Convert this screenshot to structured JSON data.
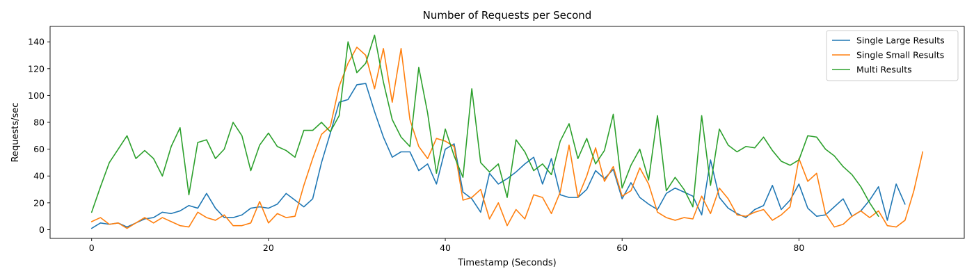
{
  "chart_data": {
    "type": "line",
    "title": "Number of Requests per Second",
    "xlabel": "Timestamp (Seconds)",
    "ylabel": "Requests/sec",
    "xlim": [
      -4.7,
      98.7
    ],
    "ylim": [
      -6.5,
      151.5
    ],
    "xticks": [
      0,
      20,
      40,
      60,
      80
    ],
    "yticks": [
      0,
      20,
      40,
      60,
      80,
      100,
      120,
      140
    ],
    "grid": false,
    "legend_position": "top-right",
    "series": [
      {
        "name": "Single Large Results",
        "color": "#1f77b4",
        "x": [
          0,
          1,
          2,
          3,
          4,
          5,
          6,
          7,
          8,
          9,
          10,
          11,
          12,
          13,
          14,
          15,
          16,
          17,
          18,
          19,
          20,
          21,
          22,
          23,
          24,
          25,
          26,
          27,
          28,
          29,
          30,
          31,
          32,
          33,
          34,
          35,
          36,
          37,
          38,
          39,
          40,
          41,
          42,
          43,
          44,
          45,
          46,
          47,
          48,
          49,
          50,
          51,
          52,
          53,
          54,
          55,
          56,
          57,
          58,
          59,
          60,
          61,
          62,
          63,
          64,
          65,
          66,
          67,
          68,
          69,
          70,
          71,
          72,
          73,
          74,
          75,
          76,
          77,
          78,
          79,
          80,
          81,
          82,
          83,
          84,
          85,
          86,
          87,
          88,
          89,
          90,
          91,
          92
        ],
        "values": [
          1,
          5,
          4,
          5,
          2,
          5,
          8,
          9,
          13,
          12,
          14,
          18,
          16,
          27,
          16,
          9,
          9,
          11,
          16,
          17,
          16,
          19,
          27,
          22,
          17,
          23,
          50,
          72,
          95,
          97,
          108,
          109,
          88,
          69,
          54,
          58,
          58,
          44,
          49,
          34,
          60,
          64,
          28,
          23,
          13,
          42,
          34,
          38,
          43,
          49,
          54,
          34,
          53,
          26,
          24,
          24,
          30,
          44,
          38,
          45,
          23,
          35,
          24,
          19,
          15,
          27,
          31,
          28,
          25,
          11,
          52,
          24,
          16,
          12,
          9,
          15,
          18,
          33,
          15,
          22,
          34,
          16,
          10,
          11,
          17,
          23,
          10,
          14,
          22,
          32,
          7,
          34,
          19
        ]
      },
      {
        "name": "Single Small Results",
        "color": "#ff7f0e",
        "x": [
          0,
          1,
          2,
          3,
          4,
          5,
          6,
          7,
          8,
          9,
          10,
          11,
          12,
          13,
          14,
          15,
          16,
          17,
          18,
          19,
          20,
          21,
          22,
          23,
          24,
          25,
          26,
          27,
          28,
          29,
          30,
          31,
          32,
          33,
          34,
          35,
          36,
          37,
          38,
          39,
          40,
          41,
          42,
          43,
          44,
          45,
          46,
          47,
          48,
          49,
          50,
          51,
          52,
          53,
          54,
          55,
          56,
          57,
          58,
          59,
          60,
          61,
          62,
          63,
          64,
          65,
          66,
          67,
          68,
          69,
          70,
          71,
          72,
          73,
          74,
          75,
          76,
          77,
          78,
          79,
          80,
          81,
          82,
          83,
          84,
          85,
          86,
          87,
          88,
          89,
          90,
          91,
          92,
          93,
          94
        ],
        "values": [
          6,
          9,
          4,
          5,
          1,
          5,
          9,
          5,
          9,
          6,
          3,
          2,
          13,
          9,
          7,
          11,
          3,
          3,
          5,
          21,
          5,
          12,
          9,
          10,
          33,
          53,
          71,
          77,
          107,
          124,
          136,
          130,
          105,
          135,
          95,
          135,
          82,
          62,
          53,
          68,
          66,
          62,
          22,
          24,
          30,
          8,
          20,
          3,
          15,
          8,
          26,
          24,
          12,
          28,
          63,
          24,
          40,
          61,
          36,
          47,
          25,
          29,
          46,
          34,
          13,
          9,
          7,
          9,
          8,
          25,
          12,
          31,
          23,
          11,
          10,
          13,
          15,
          7,
          11,
          17,
          53,
          36,
          42,
          12,
          2,
          4,
          10,
          14,
          9,
          14,
          3,
          2,
          7,
          29,
          58
        ]
      },
      {
        "name": "Multi Results",
        "color": "#2ca02c",
        "x": [
          0,
          1,
          2,
          3,
          4,
          5,
          6,
          7,
          8,
          9,
          10,
          11,
          12,
          13,
          14,
          15,
          16,
          17,
          18,
          19,
          20,
          21,
          22,
          23,
          24,
          25,
          26,
          27,
          28,
          29,
          30,
          31,
          32,
          33,
          34,
          35,
          36,
          37,
          38,
          39,
          40,
          41,
          42,
          43,
          44,
          45,
          46,
          47,
          48,
          49,
          50,
          51,
          52,
          53,
          54,
          55,
          56,
          57,
          58,
          59,
          60,
          61,
          62,
          63,
          64,
          65,
          66,
          67,
          68,
          69,
          70,
          71,
          72,
          73,
          74,
          75,
          76,
          77,
          78,
          79,
          80,
          81,
          82,
          83,
          84,
          85,
          86,
          87,
          88,
          89
        ],
        "values": [
          13,
          32,
          50,
          60,
          70,
          53,
          59,
          53,
          40,
          62,
          76,
          26,
          65,
          67,
          53,
          60,
          80,
          70,
          44,
          63,
          72,
          62,
          59,
          54,
          74,
          74,
          80,
          73,
          85,
          140,
          117,
          124,
          145,
          110,
          82,
          69,
          62,
          121,
          87,
          42,
          75,
          55,
          39,
          105,
          50,
          43,
          49,
          24,
          67,
          58,
          44,
          49,
          41,
          66,
          79,
          53,
          68,
          49,
          59,
          86,
          31,
          48,
          60,
          37,
          85,
          29,
          39,
          30,
          17,
          85,
          33,
          75,
          63,
          58,
          62,
          61,
          69,
          59,
          51,
          48,
          52,
          70,
          69,
          60,
          55,
          47,
          41,
          32,
          20,
          10
        ]
      }
    ]
  }
}
